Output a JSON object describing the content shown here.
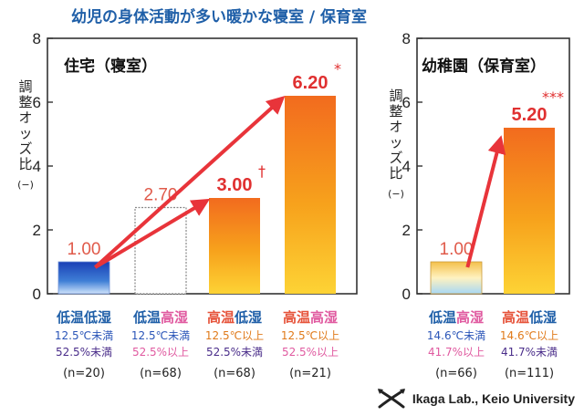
{
  "title": "幼児の身体活動が多い暖かな寝室 / 保育室",
  "colors": {
    "title": "#1f5fa8",
    "cold": "#1f5fa8",
    "warm": "#e6533a",
    "dryText": "#1f5fa8",
    "humidText": "#e05aa0",
    "cond_blue": "#2a55b8",
    "cond_orange": "#e07a1a",
    "cond_purple": "#4a2d8a",
    "cond_pink": "#e05aa0",
    "arrow": "#e8343a",
    "value_muted": "#e05a4a",
    "value_strong": "#e03030"
  },
  "chart_data": [
    {
      "type": "bar",
      "title": "住宅（寝室）",
      "ylabel": "調整オッズ比",
      "ylabel_unit": "(−)",
      "ylim": [
        0,
        8
      ],
      "yticks": [
        0,
        2,
        4,
        6,
        8
      ],
      "categories": [
        {
          "temp": "低温",
          "hum": "低湿",
          "cond1": "12.5℃未満",
          "cond2": "52.5%未満",
          "n": "(n=20)"
        },
        {
          "temp": "低温",
          "hum": "高湿",
          "cond1": "12.5℃未満",
          "cond2": "52.5%以上",
          "n": "(n=68)"
        },
        {
          "temp": "高温",
          "hum": "低湿",
          "cond1": "12.5℃以上",
          "cond2": "52.5%未満",
          "n": "(n=68)"
        },
        {
          "temp": "高温",
          "hum": "高湿",
          "cond1": "12.5℃以上",
          "cond2": "52.5%以上",
          "n": "(n=21)"
        }
      ],
      "values": [
        1.0,
        2.7,
        3.0,
        6.2
      ],
      "value_labels": [
        "1.00",
        "2.70",
        "3.00",
        "6.20"
      ],
      "significance": [
        "",
        "",
        "†",
        "*"
      ],
      "bar_styles": [
        "blue",
        "outline",
        "orange",
        "orange"
      ]
    },
    {
      "type": "bar",
      "title": "幼稚園（保育室）",
      "ylabel": "調整オッズ比",
      "ylabel_unit": "(−)",
      "ylim": [
        0,
        8
      ],
      "yticks": [
        0,
        2,
        4,
        6,
        8
      ],
      "categories": [
        {
          "temp": "低温",
          "hum": "高湿",
          "cond1": "14.6℃未満",
          "cond2": "41.7%以上",
          "n": "(n=66)"
        },
        {
          "temp": "高温",
          "hum": "低湿",
          "cond1": "14.6℃以上",
          "cond2": "41.7%未満",
          "n": "(n=111)"
        }
      ],
      "values": [
        1.0,
        5.2
      ],
      "value_labels": [
        "1.00",
        "5.20"
      ],
      "significance": [
        "",
        "***"
      ],
      "bar_styles": [
        "light",
        "orange"
      ]
    }
  ],
  "watermark": "Ikaga Lab., Keio University",
  "watermark_icon": "crossed-fish-logo"
}
